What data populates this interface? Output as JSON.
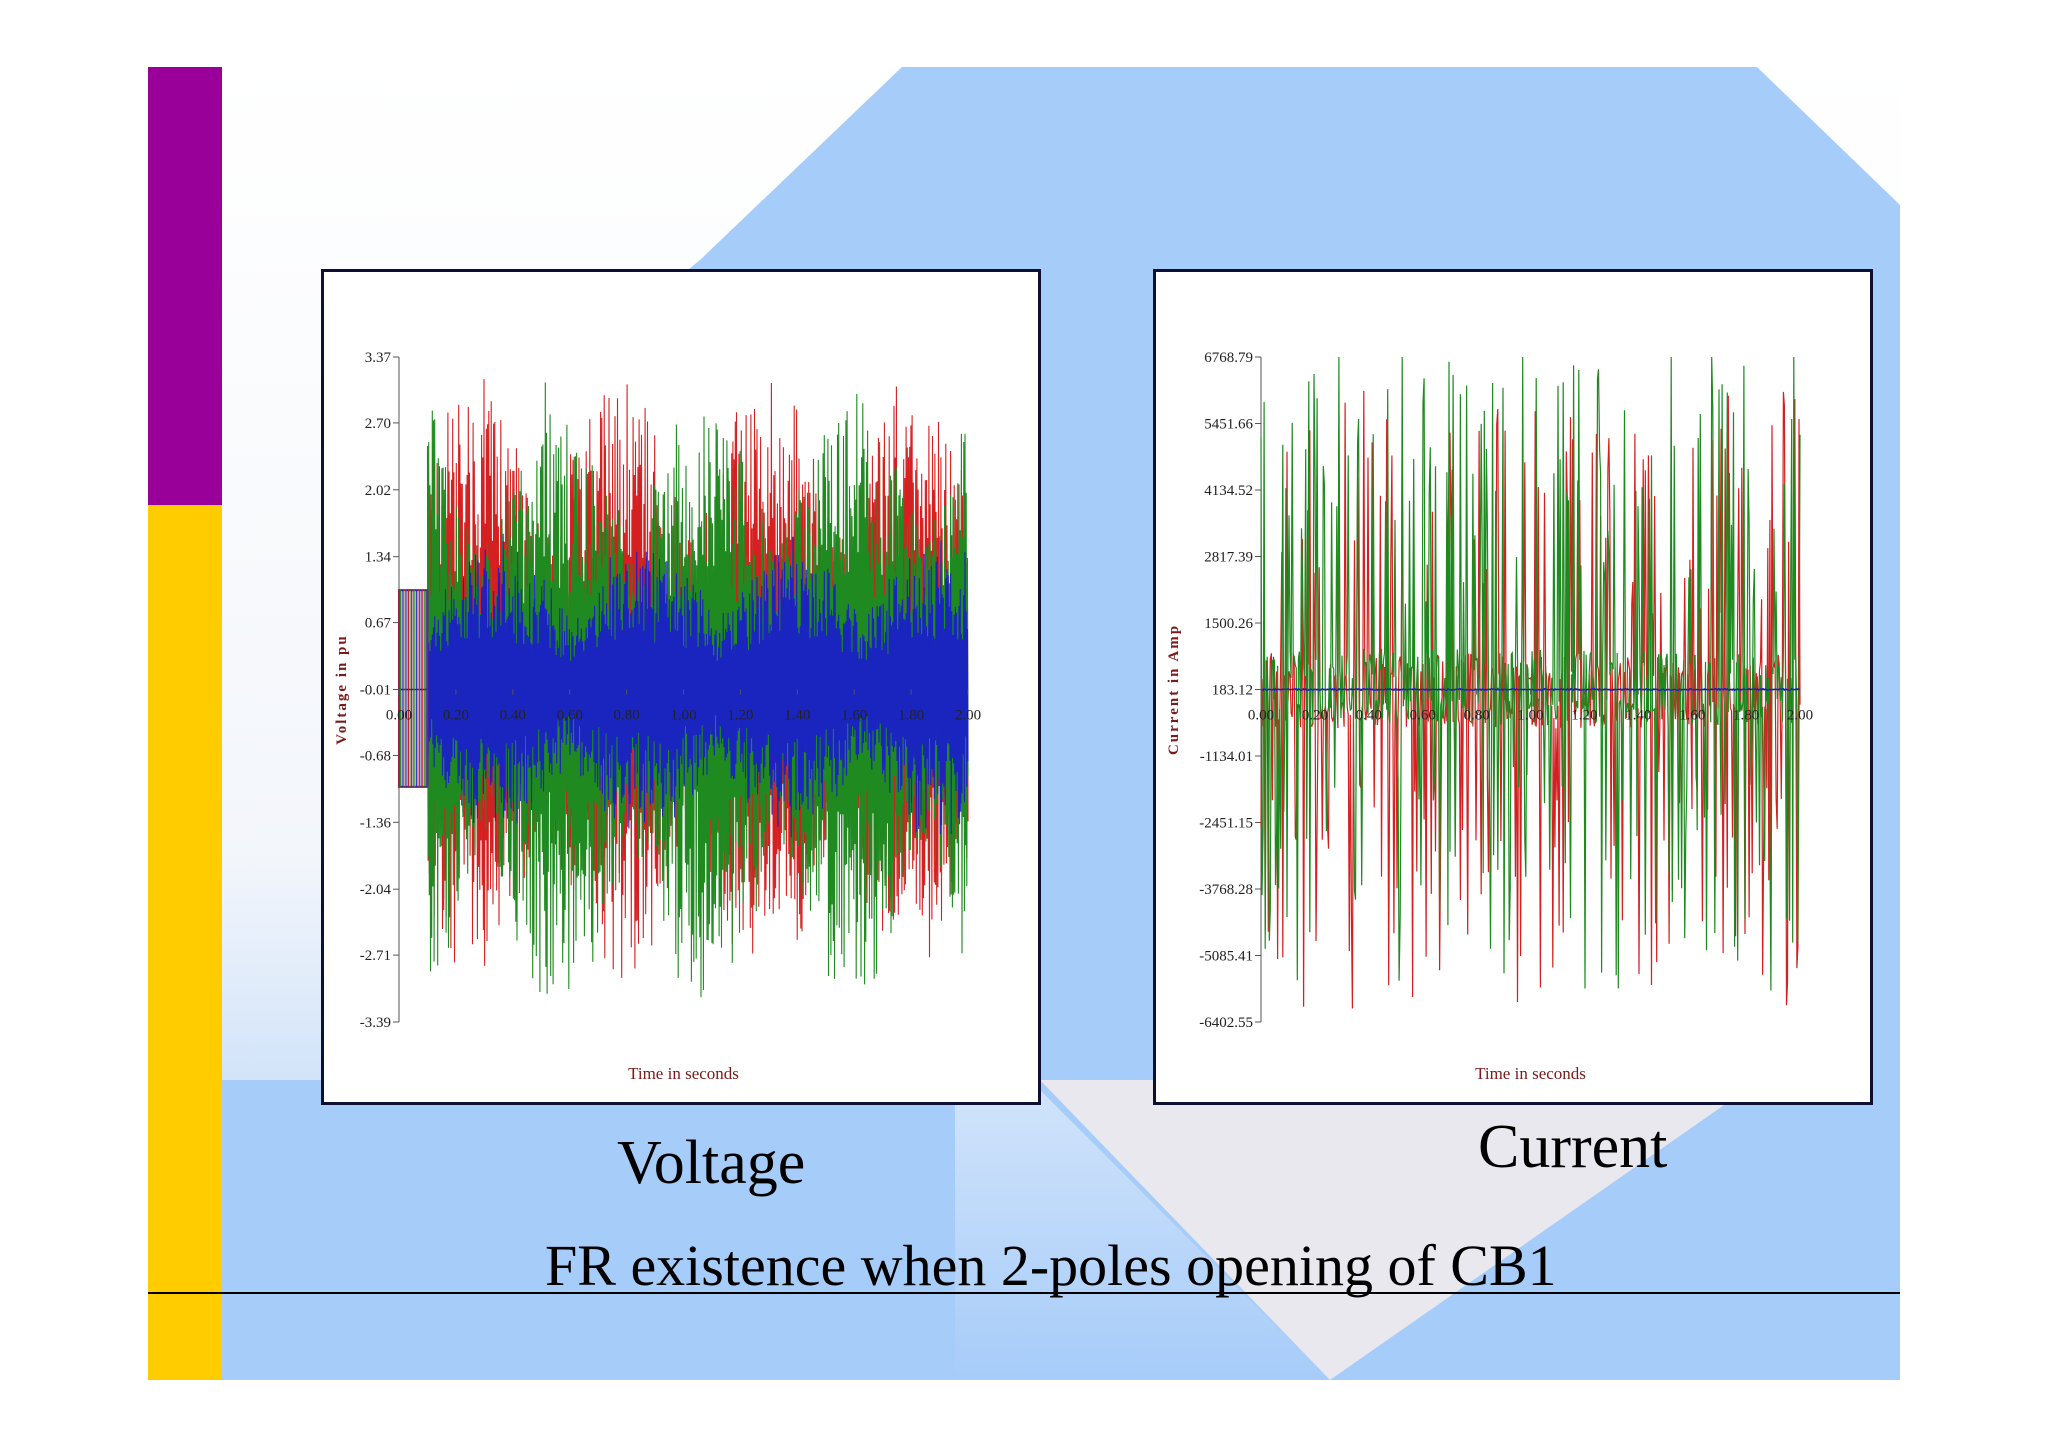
{
  "slide": {
    "title": "FR existence when 2-poles opening of CB1",
    "colors": {
      "accent_purple": "#990099",
      "accent_yellow": "#ffcc00",
      "band_blue": "#a6ccf9",
      "rule_black": "#000000"
    }
  },
  "chart_data": [
    {
      "type": "line",
      "caption": "Voltage",
      "ylabel": "Voltage in pu",
      "xlabel": "Time in seconds",
      "yticks": [
        "3.37",
        "2.70",
        "2.02",
        "1.34",
        "0.67",
        "-0.01",
        "-0.68",
        "-1.36",
        "-2.04",
        "-2.71",
        "-3.39"
      ],
      "ylim": [
        -3.39,
        3.37
      ],
      "xticks": [
        "0.00",
        "0.20",
        "0.40",
        "0.60",
        "0.80",
        "1.00",
        "1.20",
        "1.40",
        "1.60",
        "1.80",
        "2.00"
      ],
      "xlim": [
        0,
        2.0
      ],
      "series": [
        {
          "color": "#d42020",
          "peak_min": -3.1,
          "peak_max": 3.37
        },
        {
          "color": "#1f8a1f",
          "peak_min": -3.39,
          "peak_max": 3.2
        },
        {
          "color": "#1a1ad0",
          "peak_min": -1.6,
          "peak_max": 1.6
        }
      ],
      "pre_fault_pu": 1.0
    },
    {
      "type": "line",
      "caption": "Current",
      "ylabel": "Current in Amp",
      "xlabel": "Time in seconds",
      "yticks": [
        "6768.79",
        "5451.66",
        "4134.52",
        "2817.39",
        "1500.26",
        "183.12",
        "-1134.01",
        "-2451.15",
        "-3768.28",
        "-5085.41",
        "-6402.55"
      ],
      "ylim": [
        -6402.55,
        6768.79
      ],
      "xticks": [
        "0.00",
        "0.20",
        "0.40",
        "0.60",
        "0.80",
        "1.00",
        "1.20",
        "1.40",
        "1.60",
        "1.80",
        "2.00"
      ],
      "xlim": [
        0,
        2.0
      ],
      "series": [
        {
          "color": "#d42020",
          "peak_min": -6402.55,
          "peak_max": 6000
        },
        {
          "color": "#1f8a1f",
          "peak_min": -6000,
          "peak_max": 6768.79
        },
        {
          "color": "#1a1ad0",
          "peak_min": 0,
          "peak_max": 183.12
        }
      ]
    }
  ]
}
